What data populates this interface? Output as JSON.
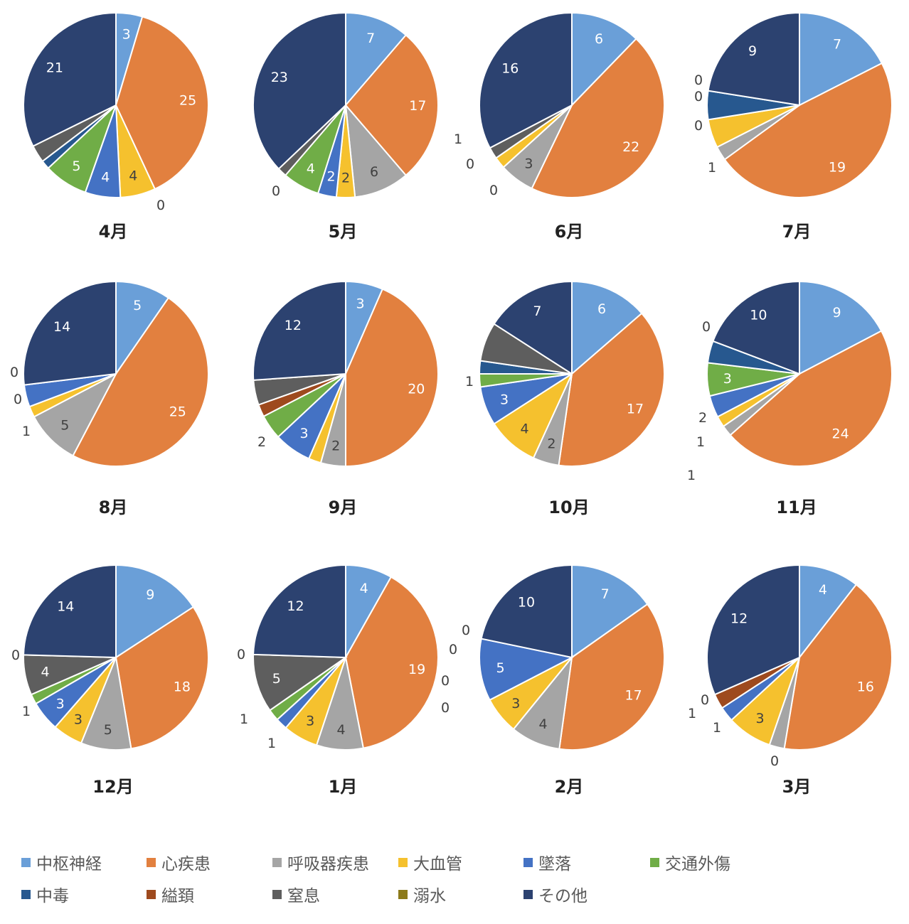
{
  "categories": [
    "中枢神経",
    "心疾患",
    "呼吸器疾患",
    "大血管",
    "墜落",
    "交通外傷",
    "中毒",
    "縊頚",
    "窒息",
    "溺水",
    "その他"
  ],
  "colors": {
    "中枢神経": "#6a9fd8",
    "心疾患": "#e2803f",
    "呼吸器疾患": "#a5a5a5",
    "大血管": "#f5c12e",
    "墜落": "#4472c4",
    "交通外傷": "#70ad47",
    "中毒": "#27588f",
    "縊頚": "#9e4a1e",
    "窒息": "#5e5e5e",
    "溺水": "#8c7a1a",
    "その他": "#2c4270"
  },
  "chart_data": [
    {
      "type": "pie",
      "title": "4月",
      "values": [
        3,
        25,
        0,
        4,
        4,
        5,
        1,
        0,
        2,
        0,
        21
      ],
      "labels": [
        "3",
        "25",
        "",
        "4",
        "4",
        "5",
        "",
        "",
        "",
        "",
        "21"
      ],
      "outside_labels": [
        "0"
      ]
    },
    {
      "type": "pie",
      "title": "5月",
      "values": [
        7,
        17,
        6,
        2,
        2,
        4,
        0,
        0,
        1,
        0,
        23
      ],
      "labels": [
        "7",
        "17",
        "6",
        "2",
        "2",
        "4",
        "",
        "",
        "",
        "",
        "23"
      ],
      "outside_labels": [
        "0"
      ]
    },
    {
      "type": "pie",
      "title": "6月",
      "values": [
        6,
        22,
        3,
        1,
        0,
        0,
        0,
        0,
        1,
        0,
        16
      ],
      "labels": [
        "6",
        "22",
        "3",
        "",
        "",
        "",
        "",
        "",
        "",
        "",
        "16"
      ],
      "outside_labels": [
        "1",
        "0",
        "0"
      ]
    },
    {
      "type": "pie",
      "title": "7月",
      "values": [
        7,
        19,
        1,
        2,
        0,
        0,
        2,
        0,
        0,
        0,
        9
      ],
      "labels": [
        "7",
        "19",
        "",
        "",
        "",
        "",
        "",
        "",
        "",
        "",
        "9"
      ],
      "outside_labels": [
        "1",
        "0",
        "0",
        "0"
      ]
    },
    {
      "type": "pie",
      "title": "8月",
      "values": [
        5,
        25,
        5,
        1,
        2,
        0,
        0,
        0,
        0,
        0,
        14
      ],
      "labels": [
        "5",
        "25",
        "5",
        "",
        "",
        "",
        "",
        "",
        "",
        "",
        "14"
      ],
      "outside_labels": [
        "1",
        "0",
        "0"
      ]
    },
    {
      "type": "pie",
      "title": "9月",
      "values": [
        3,
        20,
        2,
        1,
        3,
        2,
        0,
        1,
        2,
        0,
        12
      ],
      "labels": [
        "3",
        "20",
        "2",
        "",
        "3",
        "",
        "",
        "",
        "",
        "",
        "12"
      ],
      "outside_labels": [
        "2"
      ]
    },
    {
      "type": "pie",
      "title": "10月",
      "values": [
        6,
        17,
        2,
        4,
        3,
        1,
        1,
        0,
        3,
        0,
        7
      ],
      "labels": [
        "6",
        "17",
        "2",
        "4",
        "3",
        "",
        "",
        "",
        "",
        "",
        "7"
      ],
      "outside_labels": [
        "1"
      ]
    },
    {
      "type": "pie",
      "title": "11月",
      "values": [
        9,
        24,
        1,
        1,
        2,
        3,
        2,
        0,
        0,
        0,
        10
      ],
      "labels": [
        "9",
        "24",
        "",
        "",
        "",
        "3",
        "",
        "",
        "",
        "",
        "10"
      ],
      "outside_labels": [
        "1",
        "1",
        "2",
        "0"
      ]
    },
    {
      "type": "pie",
      "title": "12月",
      "values": [
        9,
        18,
        5,
        3,
        3,
        1,
        0,
        0,
        4,
        0,
        14
      ],
      "labels": [
        "9",
        "18",
        "5",
        "3",
        "3",
        "",
        "",
        "",
        "4",
        "",
        "14"
      ],
      "outside_labels": [
        "1",
        "0"
      ]
    },
    {
      "type": "pie",
      "title": "1月",
      "values": [
        4,
        19,
        4,
        3,
        1,
        1,
        0,
        0,
        5,
        0,
        12
      ],
      "labels": [
        "4",
        "19",
        "4",
        "3",
        "",
        "",
        "",
        "",
        "5",
        "",
        "12"
      ],
      "outside_labels": [
        "1",
        "1",
        "0"
      ]
    },
    {
      "type": "pie",
      "title": "2月",
      "values": [
        7,
        17,
        4,
        3,
        5,
        0,
        0,
        0,
        0,
        0,
        10
      ],
      "labels": [
        "7",
        "17",
        "4",
        "3",
        "5",
        "",
        "",
        "",
        "",
        "",
        "10"
      ],
      "outside_labels": [
        "0",
        "0",
        "0",
        "0"
      ]
    },
    {
      "type": "pie",
      "title": "3月",
      "values": [
        4,
        16,
        1,
        3,
        1,
        0,
        0,
        1,
        0,
        0,
        12
      ],
      "labels": [
        "4",
        "16",
        "",
        "3",
        "",
        "",
        "",
        "",
        "",
        "",
        "12"
      ],
      "outside_labels": [
        "1",
        "1",
        "0",
        "0"
      ]
    }
  ]
}
